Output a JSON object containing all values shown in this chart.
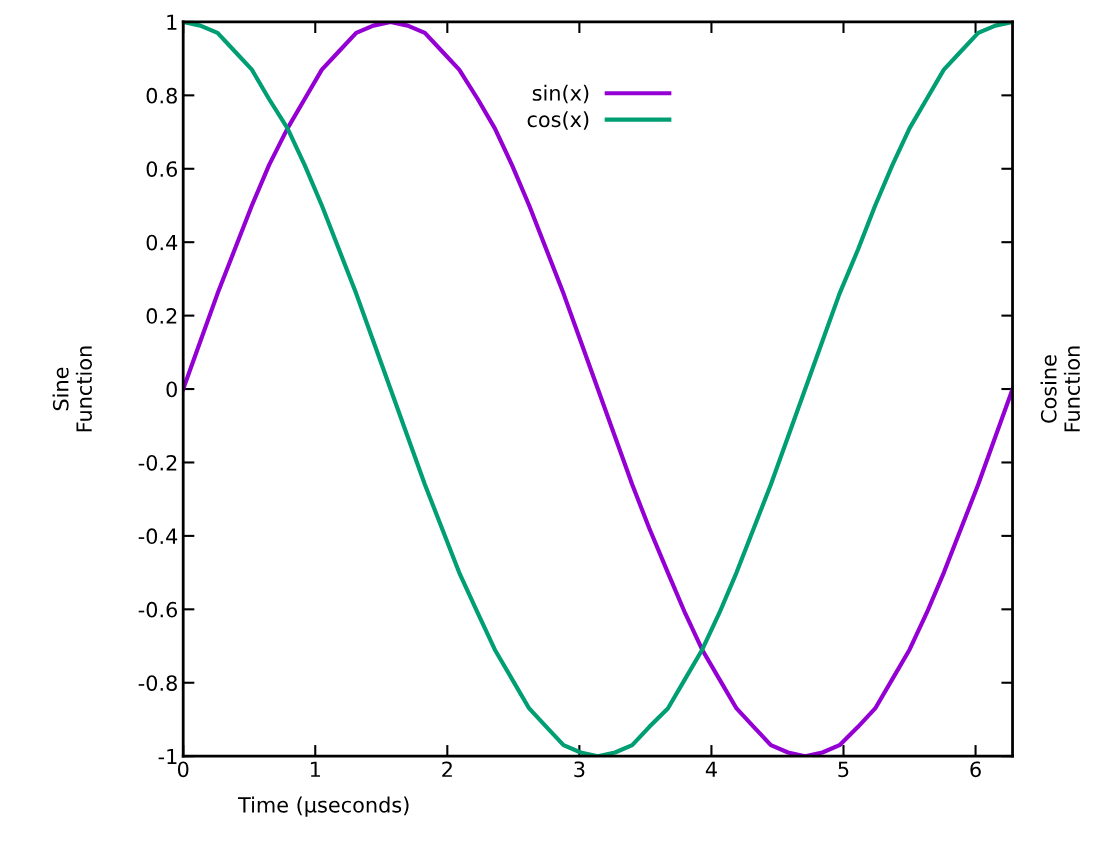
{
  "chart_data": {
    "type": "line",
    "xlabel": "Time (µseconds)",
    "ylabel": "Sine\nFunction",
    "y2label": "Cosine\nFunction",
    "x": [
      0,
      0.13,
      0.26,
      0.39,
      0.52,
      0.65,
      0.79,
      0.92,
      1.05,
      1.18,
      1.31,
      1.44,
      1.57,
      1.7,
      1.83,
      1.96,
      2.09,
      2.23,
      2.36,
      2.49,
      2.62,
      2.75,
      2.88,
      3.01,
      3.14,
      3.27,
      3.4,
      3.53,
      3.67,
      3.8,
      3.93,
      4.06,
      4.19,
      4.32,
      4.45,
      4.58,
      4.71,
      4.84,
      4.97,
      5.11,
      5.24,
      5.37,
      5.5,
      5.63,
      5.76,
      5.89,
      6.02,
      6.15,
      6.28
    ],
    "series": [
      {
        "name": "sin(x)",
        "color": "#9400d3",
        "values": [
          0,
          0.13,
          0.26,
          0.38,
          0.5,
          0.61,
          0.71,
          0.79,
          0.87,
          0.92,
          0.97,
          0.99,
          1,
          0.99,
          0.97,
          0.92,
          0.87,
          0.79,
          0.71,
          0.61,
          0.5,
          0.38,
          0.26,
          0.13,
          0,
          -0.13,
          -0.26,
          -0.38,
          -0.5,
          -0.61,
          -0.71,
          -0.79,
          -0.87,
          -0.92,
          -0.97,
          -0.99,
          -1,
          -0.99,
          -0.97,
          -0.92,
          -0.87,
          -0.79,
          -0.71,
          -0.61,
          -0.5,
          -0.38,
          -0.26,
          -0.13,
          0
        ]
      },
      {
        "name": "cos(x)",
        "color": "#009e73",
        "values": [
          1,
          0.99,
          0.97,
          0.92,
          0.87,
          0.79,
          0.71,
          0.61,
          0.5,
          0.38,
          0.26,
          0.13,
          0,
          -0.13,
          -0.26,
          -0.38,
          -0.5,
          -0.61,
          -0.71,
          -0.79,
          -0.87,
          -0.92,
          -0.97,
          -0.99,
          -1,
          -0.99,
          -0.97,
          -0.92,
          -0.87,
          -0.79,
          -0.71,
          -0.61,
          -0.5,
          -0.38,
          -0.26,
          -0.13,
          0,
          0.13,
          0.26,
          0.38,
          0.5,
          0.61,
          0.71,
          0.79,
          0.87,
          0.92,
          0.97,
          0.99,
          1
        ]
      }
    ],
    "xlim": [
      0,
      6.28
    ],
    "ylim": [
      -1,
      1
    ],
    "xticks": [
      0,
      1,
      2,
      3,
      4,
      5,
      6
    ],
    "yticks": [
      -1,
      -0.8,
      -0.6,
      -0.4,
      -0.2,
      0,
      0.2,
      0.4,
      0.6,
      0.8,
      1
    ],
    "legend": "top",
    "grid": false,
    "marker": "none",
    "line_style": "solid"
  }
}
